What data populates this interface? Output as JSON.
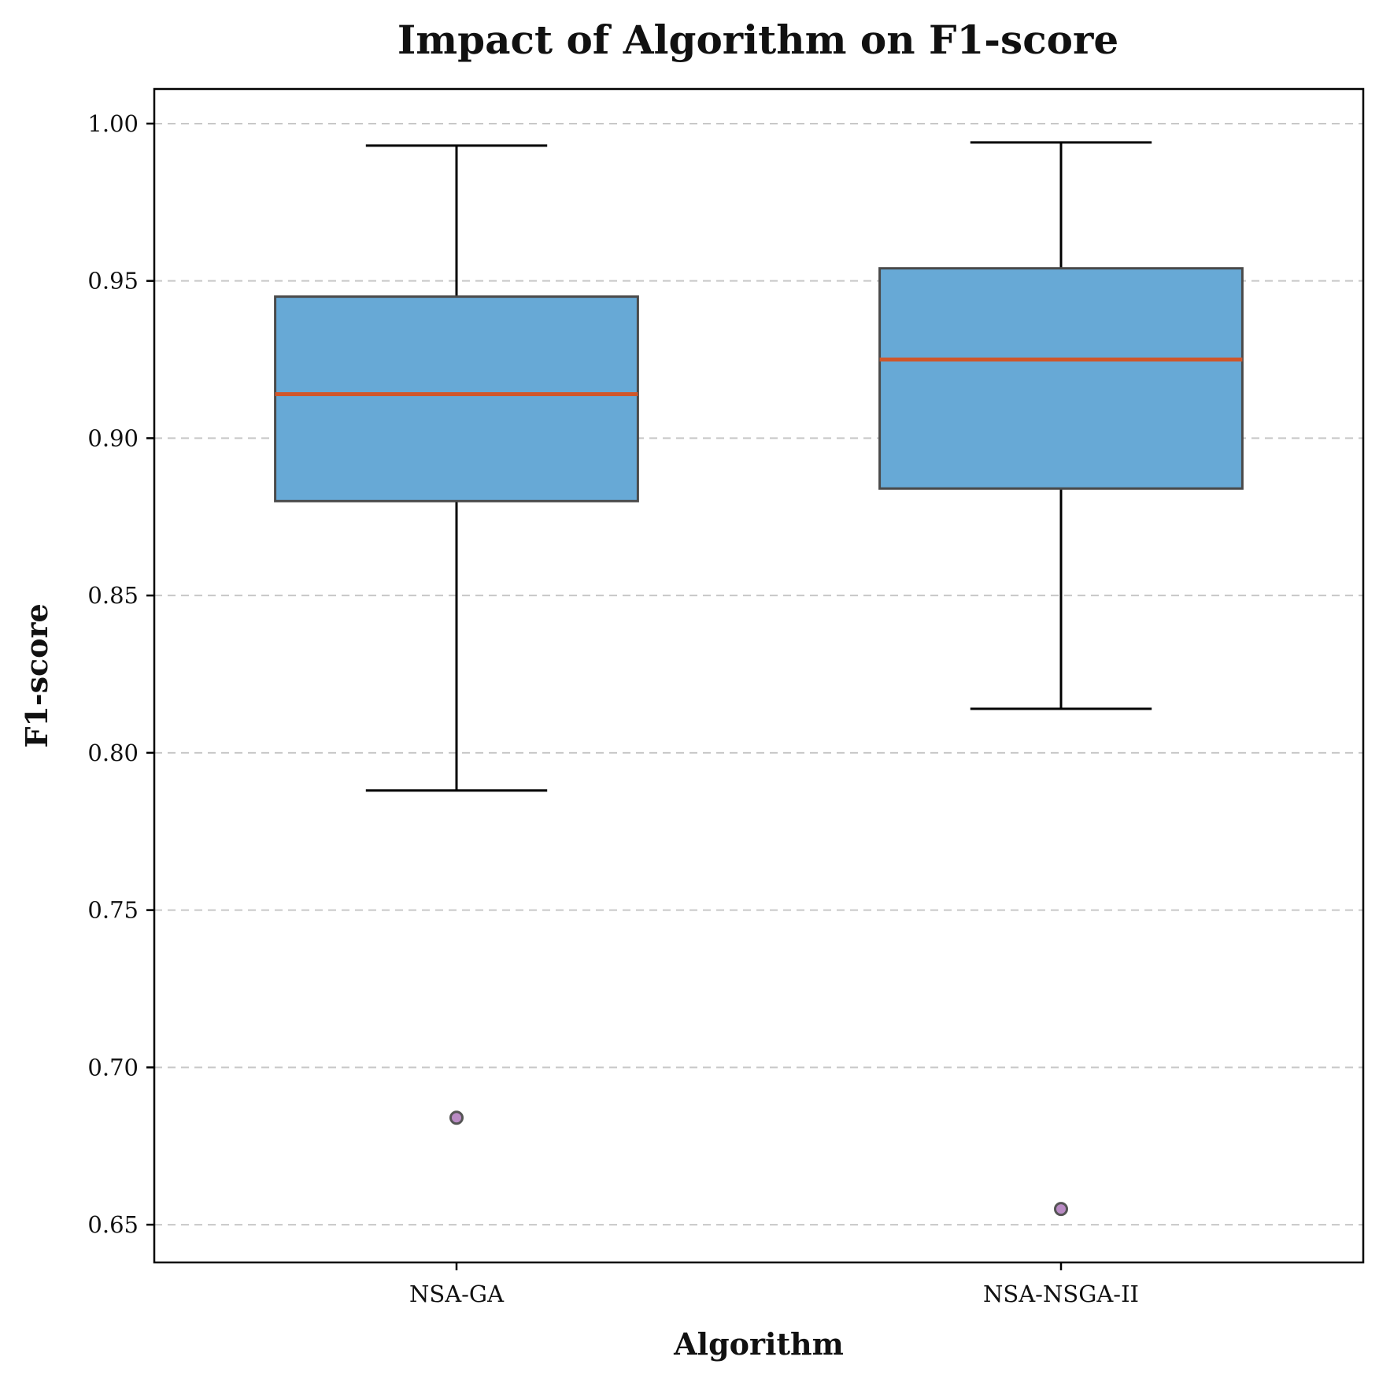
{
  "chart_data": {
    "type": "box",
    "title": "Impact of Algorithm on F1-score",
    "xlabel": "Algorithm",
    "ylabel": "F1-score",
    "ylim": [
      0.638,
      1.011
    ],
    "yticks": [
      0.65,
      0.7,
      0.75,
      0.8,
      0.85,
      0.9,
      0.95,
      1.0
    ],
    "ytick_labels": [
      "0.65",
      "0.70",
      "0.75",
      "0.80",
      "0.85",
      "0.90",
      "0.95",
      "1.00"
    ],
    "grid": "y-dashed",
    "categories": [
      "NSA-GA",
      "NSA-NSGA-II"
    ],
    "boxes": [
      {
        "category": "NSA-GA",
        "whisker_low": 0.788,
        "q1": 0.88,
        "median": 0.914,
        "q3": 0.945,
        "whisker_high": 0.993,
        "outliers": [
          0.684
        ]
      },
      {
        "category": "NSA-NSGA-II",
        "whisker_low": 0.814,
        "q1": 0.884,
        "median": 0.925,
        "q3": 0.954,
        "whisker_high": 0.994,
        "outliers": [
          0.655
        ]
      }
    ],
    "colors": {
      "box_fill": "#67a9d6",
      "median": "#d0562a",
      "outlier": "#b98bc4"
    }
  }
}
